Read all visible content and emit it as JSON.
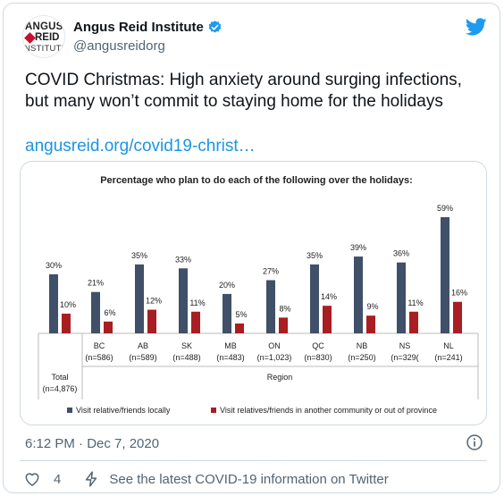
{
  "tweet": {
    "avatar": {
      "line1": "ANGUS",
      "line2": "REID",
      "line3": "NSTITUTE"
    },
    "display_name": "Angus Reid Institute",
    "handle": "@angusreidorg",
    "text": "COVID Christmas: High anxiety around surging infections, but many won’t commit to staying home for the holidays",
    "link": "angusreid.org/covid19-christ…",
    "timestamp": "6:12 PM · Dec 7, 2020",
    "likes": "4",
    "covid_info": "See the latest COVID-19 information on Twitter"
  },
  "colors": {
    "series_1": "#3f5068",
    "series_2": "#a81e22",
    "link": "#1b95e0",
    "twitter_blue": "#1d9bf0"
  },
  "icons": [
    "verified-badge-icon",
    "twitter-bird-icon",
    "info-icon",
    "heart-icon",
    "lightning-icon"
  ],
  "chart_data": {
    "type": "bar",
    "title": "Percentage who plan to do each of the following over the holidays:",
    "categories": [
      {
        "name": "",
        "n": ""
      },
      {
        "name": "BC",
        "n": "(n=586)"
      },
      {
        "name": "AB",
        "n": "(n=589)"
      },
      {
        "name": "SK",
        "n": "(n=488)"
      },
      {
        "name": "MB",
        "n": "(n=483)"
      },
      {
        "name": "ON",
        "n": "(n=1,023)"
      },
      {
        "name": "QC",
        "n": "(n=830)"
      },
      {
        "name": "NB",
        "n": "(n=250)"
      },
      {
        "name": "NS",
        "n": "(n=329("
      },
      {
        "name": "NL",
        "n": "(n=241)"
      }
    ],
    "total_label": "Total",
    "total_n": "(n=4,876)",
    "xlabel": "Region",
    "series": [
      {
        "name": "Visit relative/friends locally",
        "values": [
          30,
          21,
          35,
          33,
          20,
          27,
          35,
          39,
          36,
          59
        ]
      },
      {
        "name": "Visit relatives/friends in another community or out of province",
        "values": [
          10,
          6,
          12,
          11,
          5,
          8,
          14,
          9,
          11,
          16
        ]
      }
    ],
    "ylim": [
      0,
      59
    ],
    "legend": "bottom",
    "grid": false
  }
}
